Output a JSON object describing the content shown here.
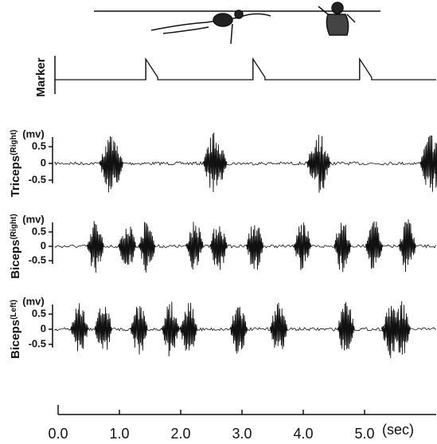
{
  "chart_data": {
    "type": "emg",
    "xlim": [
      0,
      6.25
    ],
    "xticks": [
      {
        "value": 0,
        "label": "0.0"
      },
      {
        "value": 1,
        "label": "1.0"
      },
      {
        "value": 2,
        "label": "2.0"
      },
      {
        "value": 3,
        "label": "3.0"
      },
      {
        "value": 4,
        "label": "4.0"
      },
      {
        "value": 5,
        "label": "5.0"
      }
    ],
    "xlabel": "(sec)",
    "marker": {
      "label": "Marker",
      "times": [
        1.43,
        3.18,
        4.92
      ]
    },
    "panels": [
      {
        "name": "Triceps",
        "side": "(Right)",
        "unit": "(mv)",
        "yticks": [
          0.5,
          0,
          -0.5
        ],
        "bursts": [
          0.87,
          2.56,
          4.25,
          6.1
        ]
      },
      {
        "name": "Biceps",
        "side": "(Right)",
        "unit": "(mv)",
        "yticks": [
          0.5,
          0,
          -0.5
        ],
        "bursts": [
          0.61,
          1.13,
          1.45,
          2.23,
          2.62,
          3.21,
          3.99,
          4.64,
          5.16,
          5.7
        ]
      },
      {
        "name": "Biceps",
        "side": "(Left)",
        "unit": "(mv)",
        "yticks": [
          0.5,
          0,
          -0.5
        ],
        "bursts": [
          0.35,
          0.74,
          1.32,
          1.84,
          2.13,
          2.95,
          3.6,
          4.7,
          5.42,
          5.61
        ]
      }
    ]
  }
}
